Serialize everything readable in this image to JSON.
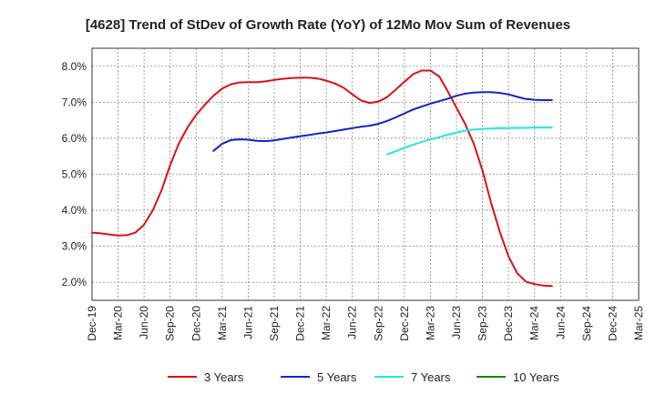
{
  "chart_data": {
    "type": "line",
    "title": "[4628]  Trend of StDev of Growth Rate (YoY) of 12Mo Mov Sum of Revenues",
    "xlabel": "",
    "ylabel": "",
    "ylim": [
      1.5,
      8.5
    ],
    "yticks": [
      2.0,
      3.0,
      4.0,
      5.0,
      6.0,
      7.0,
      8.0
    ],
    "ytick_labels": [
      "2.0%",
      "3.0%",
      "4.0%",
      "5.0%",
      "6.0%",
      "7.0%",
      "8.0%"
    ],
    "xlim": [
      0,
      63
    ],
    "xticks": [
      0,
      3,
      6,
      9,
      12,
      15,
      18,
      21,
      24,
      27,
      30,
      33,
      36,
      39,
      42,
      45,
      48,
      51,
      54,
      57,
      60,
      63
    ],
    "xtick_labels": [
      "Dec-19",
      "Mar-20",
      "Jun-20",
      "Sep-20",
      "Dec-20",
      "Mar-21",
      "Jun-21",
      "Sep-21",
      "Dec-21",
      "Mar-22",
      "Jun-22",
      "Sep-22",
      "Dec-22",
      "Mar-23",
      "Jun-23",
      "Sep-23",
      "Dec-23",
      "Mar-24",
      "Jun-24",
      "Sep-24",
      "Dec-24",
      "Mar-25"
    ],
    "grid": true,
    "legend_position": "bottom",
    "series": [
      {
        "name": "3 Years",
        "color": "#dd1111",
        "points": [
          [
            0,
            3.38
          ],
          [
            1,
            3.36
          ],
          [
            2,
            3.33
          ],
          [
            3,
            3.3
          ],
          [
            4,
            3.31
          ],
          [
            5,
            3.38
          ],
          [
            6,
            3.6
          ],
          [
            7,
            4.0
          ],
          [
            8,
            4.55
          ],
          [
            9,
            5.25
          ],
          [
            10,
            5.85
          ],
          [
            11,
            6.3
          ],
          [
            12,
            6.65
          ],
          [
            13,
            6.93
          ],
          [
            14,
            7.18
          ],
          [
            15,
            7.38
          ],
          [
            16,
            7.5
          ],
          [
            17,
            7.55
          ],
          [
            18,
            7.56
          ],
          [
            19,
            7.56
          ],
          [
            20,
            7.58
          ],
          [
            21,
            7.62
          ],
          [
            22,
            7.65
          ],
          [
            23,
            7.67
          ],
          [
            24,
            7.68
          ],
          [
            25,
            7.68
          ],
          [
            26,
            7.66
          ],
          [
            27,
            7.6
          ],
          [
            28,
            7.52
          ],
          [
            29,
            7.4
          ],
          [
            30,
            7.22
          ],
          [
            31,
            7.05
          ],
          [
            32,
            6.98
          ],
          [
            33,
            7.02
          ],
          [
            34,
            7.14
          ],
          [
            35,
            7.35
          ],
          [
            36,
            7.57
          ],
          [
            37,
            7.78
          ],
          [
            38,
            7.88
          ],
          [
            39,
            7.88
          ],
          [
            40,
            7.72
          ],
          [
            41,
            7.3
          ],
          [
            42,
            6.85
          ],
          [
            43,
            6.4
          ],
          [
            44,
            5.85
          ],
          [
            45,
            5.1
          ],
          [
            46,
            4.2
          ],
          [
            47,
            3.4
          ],
          [
            48,
            2.72
          ],
          [
            49,
            2.25
          ],
          [
            50,
            2.02
          ],
          [
            51,
            1.95
          ],
          [
            52,
            1.91
          ],
          [
            53,
            1.9
          ]
        ]
      },
      {
        "name": "5 Years",
        "color": "#1122cc",
        "points": [
          [
            14,
            5.65
          ],
          [
            15,
            5.85
          ],
          [
            16,
            5.95
          ],
          [
            17,
            5.97
          ],
          [
            18,
            5.96
          ],
          [
            19,
            5.93
          ],
          [
            20,
            5.92
          ],
          [
            21,
            5.94
          ],
          [
            22,
            5.98
          ],
          [
            23,
            6.02
          ],
          [
            24,
            6.06
          ],
          [
            25,
            6.09
          ],
          [
            26,
            6.13
          ],
          [
            27,
            6.16
          ],
          [
            28,
            6.2
          ],
          [
            29,
            6.24
          ],
          [
            30,
            6.28
          ],
          [
            31,
            6.32
          ],
          [
            32,
            6.35
          ],
          [
            33,
            6.4
          ],
          [
            34,
            6.48
          ],
          [
            35,
            6.58
          ],
          [
            36,
            6.69
          ],
          [
            37,
            6.8
          ],
          [
            38,
            6.88
          ],
          [
            39,
            6.96
          ],
          [
            40,
            7.03
          ],
          [
            41,
            7.1
          ],
          [
            42,
            7.18
          ],
          [
            43,
            7.24
          ],
          [
            44,
            7.27
          ],
          [
            45,
            7.28
          ],
          [
            46,
            7.28
          ],
          [
            47,
            7.26
          ],
          [
            48,
            7.22
          ],
          [
            49,
            7.15
          ],
          [
            50,
            7.09
          ],
          [
            51,
            7.07
          ],
          [
            52,
            7.06
          ],
          [
            53,
            7.06
          ]
        ]
      },
      {
        "name": "7 Years",
        "color": "#22e6e6",
        "points": [
          [
            34,
            5.55
          ],
          [
            35,
            5.64
          ],
          [
            36,
            5.73
          ],
          [
            37,
            5.82
          ],
          [
            38,
            5.9
          ],
          [
            39,
            5.97
          ],
          [
            40,
            6.03
          ],
          [
            41,
            6.1
          ],
          [
            42,
            6.16
          ],
          [
            43,
            6.21
          ],
          [
            44,
            6.24
          ],
          [
            45,
            6.26
          ],
          [
            46,
            6.27
          ],
          [
            47,
            6.28
          ],
          [
            48,
            6.28
          ],
          [
            49,
            6.29
          ],
          [
            50,
            6.29
          ],
          [
            51,
            6.3
          ],
          [
            52,
            6.3
          ],
          [
            53,
            6.3
          ]
        ]
      },
      {
        "name": "10 Years",
        "color": "#118811",
        "points": []
      }
    ]
  }
}
